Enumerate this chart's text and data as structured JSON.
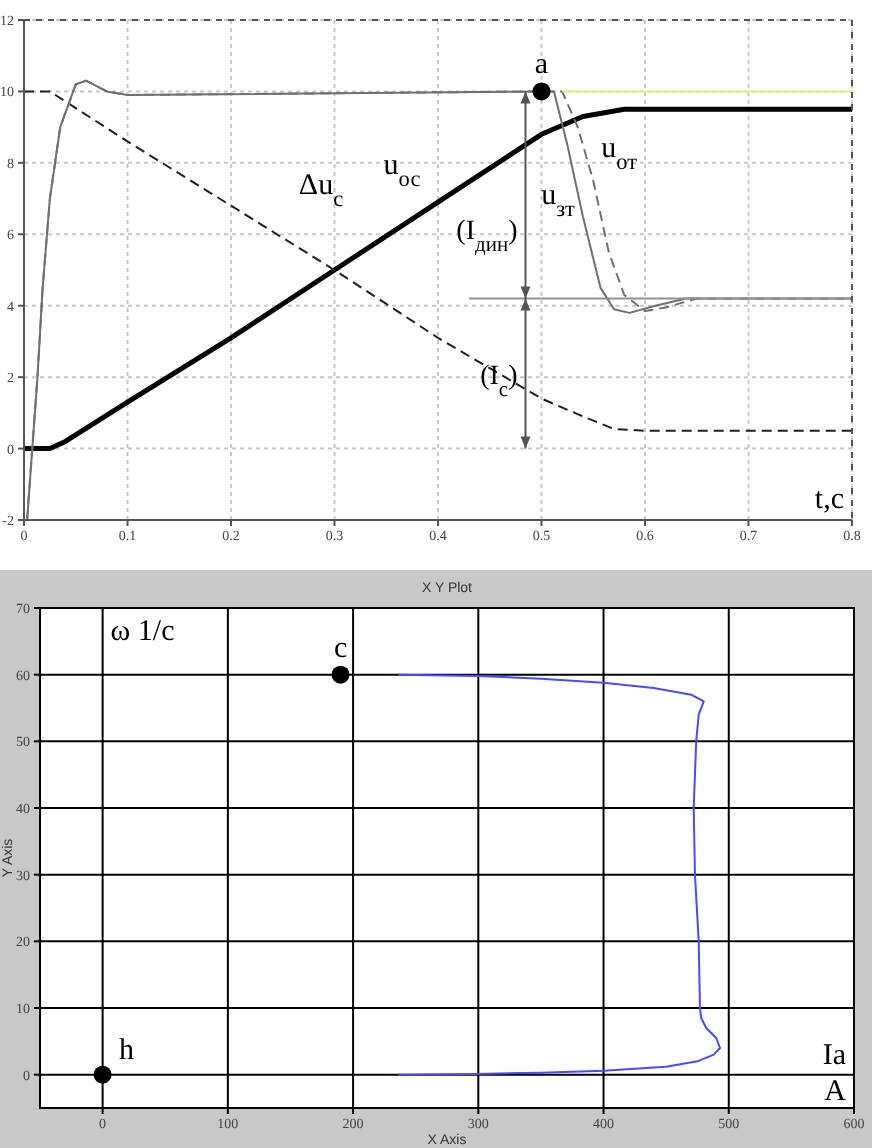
{
  "chart_data": [
    {
      "type": "line",
      "xlabel": "t,с",
      "xlim": [
        0,
        0.8
      ],
      "xticks": [
        0,
        0.1,
        0.2,
        0.3,
        0.4,
        0.5,
        0.6,
        0.7,
        0.8
      ],
      "ylim": [
        -2,
        12
      ],
      "yticks": [
        -2,
        0,
        2,
        4,
        6,
        8,
        10,
        12
      ],
      "grid": true,
      "marker": "circle",
      "annotations": [
        "(I$_{дин}$)",
        "(I$_{с}$)"
      ],
      "series": [
        {
          "name": "u$_{ос}$",
          "color": "#000000",
          "line_style": "solid",
          "marker": "none",
          "x": [
            0,
            0.025,
            0.04,
            0.1,
            0.2,
            0.3,
            0.4,
            0.5,
            0.54,
            0.58,
            0.8
          ],
          "values": [
            0,
            0,
            0.2,
            1.3,
            3.1,
            5,
            6.9,
            8.8,
            9.3,
            9.5,
            9.5
          ]
        },
        {
          "name": "Δu$_{с}$",
          "color": "#202020",
          "line_style": "dashed",
          "marker": "none",
          "x": [
            0,
            0.025,
            0.1,
            0.2,
            0.3,
            0.4,
            0.5,
            0.54,
            0.57,
            0.6,
            0.8
          ],
          "values": [
            10,
            10,
            8.6,
            6.8,
            5,
            3.1,
            1.4,
            0.9,
            0.55,
            0.5,
            0.5
          ]
        },
        {
          "name": "u$_{зт}$",
          "color": "#707070",
          "line_style": "solid",
          "marker": "none",
          "x": [
            0.003,
            0.008,
            0.013,
            0.018,
            0.025,
            0.035,
            0.05,
            0.06,
            0.08,
            0.1,
            0.5,
            0.512,
            0.525,
            0.54,
            0.557,
            0.57,
            0.585,
            0.61,
            0.64,
            0.8
          ],
          "values": [
            -2,
            0,
            2,
            4.5,
            7,
            9,
            10.2,
            10.3,
            10,
            9.9,
            10,
            10,
            8.5,
            6.5,
            4.5,
            3.9,
            3.8,
            4,
            4.2,
            4.2
          ]
        },
        {
          "name": "u$_{от}$",
          "color": "#707070",
          "line_style": "dashed",
          "marker": "none",
          "x": [
            0.003,
            0.008,
            0.013,
            0.018,
            0.025,
            0.035,
            0.05,
            0.06,
            0.08,
            0.1,
            0.5,
            0.52,
            0.535,
            0.55,
            0.565,
            0.58,
            0.6,
            0.62,
            0.65,
            0.8
          ],
          "values": [
            -2,
            0,
            2,
            4.5,
            7,
            9,
            10.2,
            10.3,
            10,
            9.9,
            10,
            10,
            9,
            7.5,
            5.5,
            4.3,
            3.85,
            3.95,
            4.2,
            4.2
          ]
        },
        {
          "color": "#eeee88",
          "line_style": "solid",
          "marker": "none",
          "x": [
            0.52,
            0.8
          ],
          "values": [
            10,
            10
          ]
        },
        {
          "color": "#909090",
          "line_style": "solid",
          "marker": "none",
          "x": [
            0.43,
            0.8
          ],
          "values": [
            4.2,
            4.2
          ]
        },
        {
          "type": "scatter",
          "name": "a",
          "color": "#000000",
          "x": [
            0.5
          ],
          "values": [
            10
          ]
        }
      ]
    },
    {
      "type": "line",
      "title": "X Y Plot",
      "xlabel": "X Axis",
      "ylabel": "Y Axis",
      "xlim": [
        -50,
        600
      ],
      "xticks": [
        0,
        100,
        200,
        300,
        400,
        500,
        600
      ],
      "ylim": [
        -5,
        70
      ],
      "yticks": [
        0,
        10,
        20,
        30,
        40,
        50,
        60,
        70
      ],
      "grid": true,
      "marker": "circle",
      "annotations": [
        "ω  1/с",
        "Ia",
        "A"
      ],
      "series": [
        {
          "color": "#4a4aff",
          "line_style": "solid",
          "marker": "none",
          "x": [
            236,
            300,
            350,
            400,
            450,
            475,
            488,
            493,
            490,
            482,
            478,
            477,
            476,
            473,
            472,
            474,
            476,
            480,
            470,
            440,
            400,
            350,
            300,
            236
          ],
          "values": [
            0,
            0.1,
            0.3,
            0.6,
            1.2,
            2,
            3,
            4,
            5.5,
            7,
            8.5,
            10,
            20,
            30,
            40,
            50,
            54,
            56,
            57,
            58,
            58.8,
            59.4,
            59.8,
            60
          ]
        },
        {
          "type": "scatter",
          "name": "c",
          "color": "#000000",
          "x": [
            190
          ],
          "values": [
            60
          ]
        },
        {
          "type": "scatter",
          "name": "h",
          "color": "#000000",
          "x": [
            0
          ],
          "values": [
            0
          ]
        }
      ]
    }
  ]
}
